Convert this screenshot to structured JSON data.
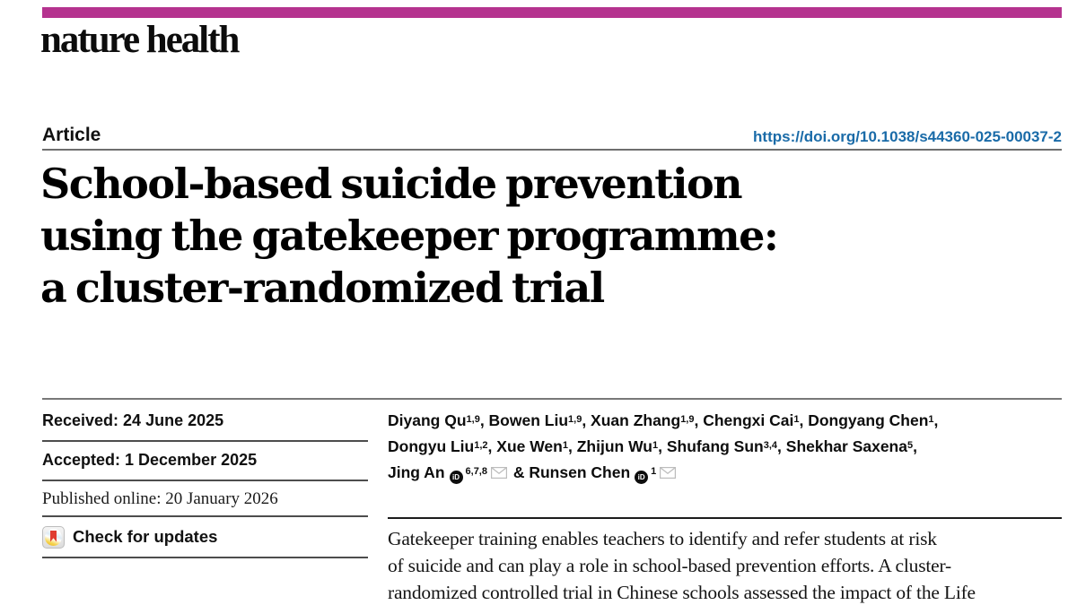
{
  "brand": {
    "journal_name": "nature health",
    "bar_color": "#b5338f"
  },
  "header": {
    "article_label": "Article",
    "doi": "https://doi.org/10.1038/s44360-025-00037-2",
    "doi_color": "#1a6ba8"
  },
  "title": {
    "lines": [
      "School-based suicide prevention",
      "using the gatekeeper programme:",
      "a cluster-randomized trial"
    ]
  },
  "sidebar": {
    "received": "Received: 24 June 2025",
    "accepted": "Accepted: 1 December 2025",
    "published": "Published online: 20 January 2026",
    "check_updates_label": "Check for updates",
    "crossmark_icon": "crossmark-bookmark-circle"
  },
  "authors": {
    "lines": [
      [
        {
          "name": "Diyang Qu",
          "sup": "1,9",
          "sep": ", "
        },
        {
          "name": "Bowen Liu",
          "sup": "1,9",
          "sep": ", "
        },
        {
          "name": "Xuan Zhang",
          "sup": "1,9",
          "sep": ", "
        },
        {
          "name": "Chengxi Cai",
          "sup": "1",
          "sep": ", "
        },
        {
          "name": "Dongyang Chen",
          "sup": "1",
          "sep": ","
        }
      ],
      [
        {
          "name": "Dongyu Liu",
          "sup": "1,2",
          "sep": ", "
        },
        {
          "name": "Xue Wen",
          "sup": "1",
          "sep": ", "
        },
        {
          "name": "Zhijun Wu",
          "sup": "1",
          "sep": ", "
        },
        {
          "name": "Shufang Sun",
          "sup": "3,4",
          "sep": ", "
        },
        {
          "name": "Shekhar Saxena",
          "sup": "5",
          "sep": ","
        }
      ],
      [
        {
          "name": "Jing An",
          "orcid": true,
          "sup": "6,7,8",
          "email": true,
          "sep": " & "
        },
        {
          "name": "Runsen Chen",
          "orcid": true,
          "sup": "1",
          "email": true,
          "sep": ""
        }
      ]
    ],
    "orcid_icon_label": "iD",
    "email_icon": "envelope"
  },
  "abstract": {
    "lines": [
      "Gatekeeper training enables teachers to identify and refer students at risk",
      "of suicide and can play a role in school-based prevention efforts. A cluster-",
      "randomized controlled trial in Chinese schools assessed the impact of the Life"
    ]
  }
}
